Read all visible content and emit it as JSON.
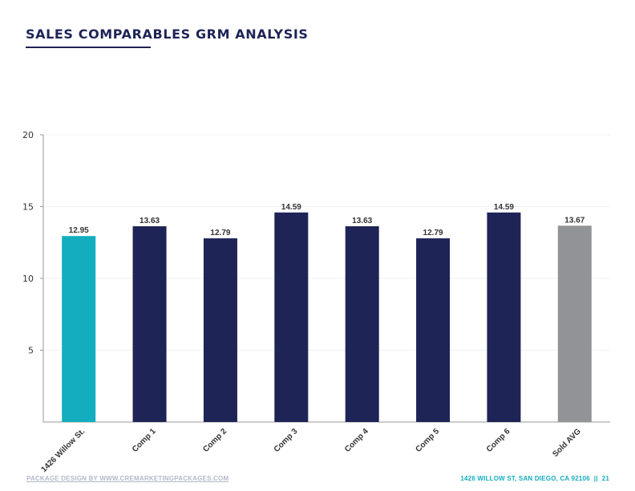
{
  "page": {
    "title": "SALES COMPARABLES GRM ANALYSIS",
    "footer_left": "PACKAGE DESIGN BY WWW.CREMARKETINGPACKAGES.COM",
    "footer_right_address": "1426 WILLOW ST, SAN DIEGO, CA 92106",
    "footer_right_sep": "||",
    "footer_right_page": "21"
  },
  "colors": {
    "subject": "#13adbf",
    "comps": "#1e2456",
    "average": "#929396",
    "title": "#1e2456"
  },
  "chart_data": {
    "type": "bar",
    "title": "",
    "xlabel": "",
    "ylabel": "",
    "ylim": [
      0,
      20
    ],
    "yticks": [
      5,
      10,
      15,
      20
    ],
    "grid": true,
    "legend": "none",
    "categories": [
      "1426 Willow St.",
      "Comp 1",
      "Comp 2",
      "Comp 3",
      "Comp 4",
      "Comp 5",
      "Comp 6",
      "Sold AVG"
    ],
    "values": [
      12.95,
      13.63,
      12.79,
      14.59,
      13.63,
      12.79,
      14.59,
      13.67
    ],
    "value_labels": [
      "12.95",
      "13.63",
      "12.79",
      "14.59",
      "13.63",
      "12.79",
      "14.59",
      "13.67"
    ],
    "bar_roles": [
      "subject",
      "comps",
      "comps",
      "comps",
      "comps",
      "comps",
      "comps",
      "average"
    ]
  }
}
